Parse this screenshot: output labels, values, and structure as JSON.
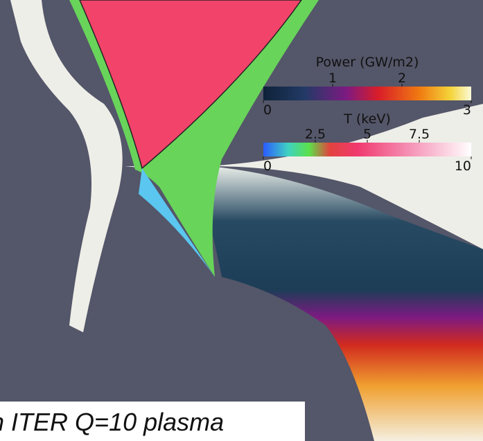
{
  "colorbars": [
    {
      "title": "Power (GW/m2)",
      "lim": [
        0,
        3
      ],
      "ticks_above": [
        1,
        2
      ],
      "ticks_below": [
        0,
        3
      ]
    },
    {
      "title": "T (keV)",
      "lim": [
        0,
        10
      ],
      "ticks_above": [
        2.5,
        5,
        7.5
      ],
      "ticks_below": [
        0,
        10
      ]
    }
  ],
  "caption": "n ITER Q=10 plasma"
}
